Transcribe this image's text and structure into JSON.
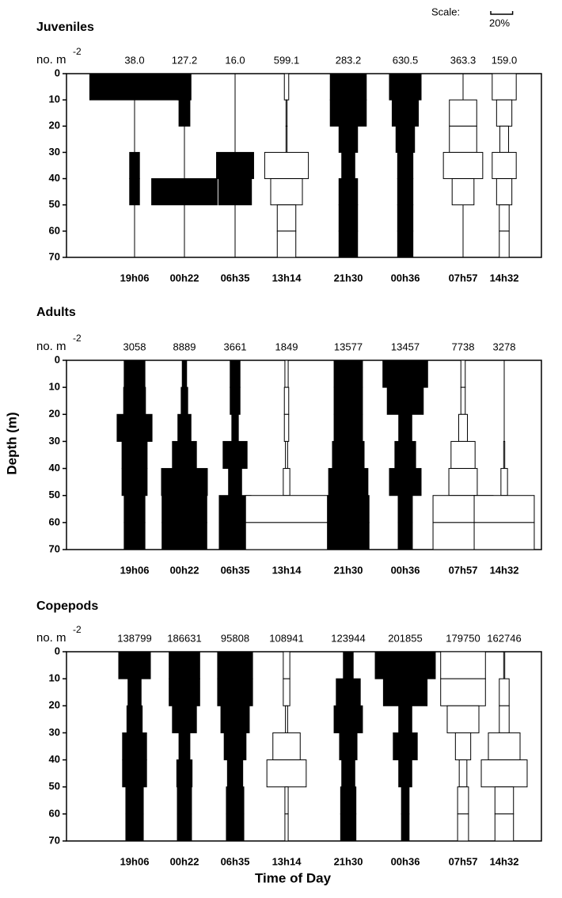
{
  "ylabel": "Depth (m)",
  "xlabel": "Time of Day",
  "scale": {
    "label": "Scale:",
    "value": 20,
    "value_label": "20%"
  },
  "chart_data": [
    {
      "type": "kite",
      "title": "Juveniles",
      "unit_label": "no. m",
      "unit_exponent": "-2",
      "depth_bins": [
        0,
        10,
        20,
        30,
        40,
        50,
        60,
        70
      ],
      "ylim": [
        0,
        70
      ],
      "yticks": [
        0,
        10,
        20,
        30,
        40,
        50,
        60,
        70
      ],
      "totals": [
        38.0,
        127.2,
        16.0,
        599.1,
        283.2,
        630.5,
        363.3,
        159.0
      ],
      "value_labels": [
        "38.0",
        "127.2",
        "16.0",
        "599.1",
        "283.2",
        "630.5",
        "363.3",
        "159.0"
      ],
      "series": [
        {
          "name": "19h06",
          "color": "#000000",
          "values": [
            82,
            0,
            0,
            9,
            9,
            0,
            0
          ]
        },
        {
          "name": "00h22",
          "color": "#000000",
          "values": [
            12,
            10,
            0,
            0,
            60,
            0,
            0
          ]
        },
        {
          "name": "06h35",
          "color": "#000000",
          "values": [
            0,
            0,
            0,
            34,
            30,
            0,
            0
          ]
        },
        {
          "name": "13h14",
          "color": "#ffffff",
          "values": [
            4,
            1,
            1,
            40,
            29,
            17,
            17
          ]
        },
        {
          "name": "21h30",
          "color": "#000000",
          "values": [
            33,
            33,
            17,
            12,
            17,
            17,
            17
          ]
        },
        {
          "name": "00h36",
          "color": "#000000",
          "values": [
            29,
            24,
            17,
            14,
            14,
            14,
            14
          ]
        },
        {
          "name": "07h57",
          "color": "#ffffff",
          "values": [
            0,
            25,
            25,
            36,
            20,
            0,
            0
          ]
        },
        {
          "name": "14h32",
          "color": "#ffffff",
          "values": [
            22,
            14,
            8,
            22,
            14,
            9,
            9
          ]
        }
      ]
    },
    {
      "type": "kite",
      "title": "Adults",
      "unit_label": "no. m",
      "unit_exponent": "-2",
      "depth_bins": [
        0,
        10,
        20,
        30,
        40,
        50,
        60,
        70
      ],
      "ylim": [
        0,
        70
      ],
      "yticks": [
        0,
        10,
        20,
        30,
        40,
        50,
        60,
        70
      ],
      "totals": [
        3058,
        8889,
        3661,
        1849,
        13577,
        13457,
        7738,
        3278
      ],
      "series": [
        {
          "name": "19h06",
          "color": "#000000",
          "values": [
            19,
            20,
            32,
            23,
            23,
            19,
            19
          ]
        },
        {
          "name": "00h22",
          "color": "#000000",
          "values": [
            4,
            6,
            12,
            22,
            42,
            41,
            41
          ]
        },
        {
          "name": "06h35",
          "color": "#000000",
          "values": [
            9,
            9,
            6,
            22,
            12,
            29,
            29
          ]
        },
        {
          "name": "13h14",
          "color": "#ffffff",
          "values": [
            3,
            4,
            4,
            2,
            6,
            75,
            75
          ]
        },
        {
          "name": "21h30",
          "color": "#000000",
          "values": [
            26,
            26,
            26,
            29,
            36,
            38,
            38
          ]
        },
        {
          "name": "00h36",
          "color": "#000000",
          "values": [
            41,
            33,
            12,
            19,
            29,
            13,
            13
          ]
        },
        {
          "name": "07h57",
          "color": "#ffffff",
          "values": [
            4,
            4,
            8,
            22,
            26,
            55,
            55
          ]
        },
        {
          "name": "14h32",
          "color": "#ffffff",
          "values": [
            0,
            0,
            0,
            1,
            6,
            55,
            55
          ]
        }
      ]
    },
    {
      "type": "kite",
      "title": "Copepods",
      "unit_label": "no. m",
      "unit_exponent": "-2",
      "depth_bins": [
        0,
        10,
        20,
        30,
        40,
        50,
        60,
        70
      ],
      "ylim": [
        0,
        70
      ],
      "yticks": [
        0,
        10,
        20,
        30,
        40,
        50,
        60,
        70
      ],
      "totals": [
        138799,
        186631,
        95808,
        108941,
        123944,
        201855,
        179750,
        162746
      ],
      "series": [
        {
          "name": "19h06",
          "color": "#000000",
          "values": [
            29,
            12,
            14,
            22,
            22,
            16,
            16
          ]
        },
        {
          "name": "00h22",
          "color": "#000000",
          "values": [
            28,
            28,
            22,
            10,
            14,
            13,
            13
          ]
        },
        {
          "name": "06h35",
          "color": "#000000",
          "values": [
            32,
            32,
            26,
            20,
            14,
            16,
            16
          ]
        },
        {
          "name": "13h14",
          "color": "#ffffff",
          "values": [
            6,
            6,
            2,
            25,
            36,
            3,
            3
          ]
        },
        {
          "name": "21h30",
          "color": "#000000",
          "values": [
            9,
            22,
            26,
            16,
            12,
            14,
            14
          ]
        },
        {
          "name": "00h36",
          "color": "#000000",
          "values": [
            55,
            40,
            12,
            22,
            12,
            7,
            7
          ]
        },
        {
          "name": "07h57",
          "color": "#ffffff",
          "values": [
            41,
            41,
            29,
            14,
            7,
            10,
            10
          ]
        },
        {
          "name": "14h32",
          "color": "#ffffff",
          "values": [
            1,
            9,
            9,
            29,
            42,
            17,
            17
          ]
        }
      ]
    }
  ]
}
